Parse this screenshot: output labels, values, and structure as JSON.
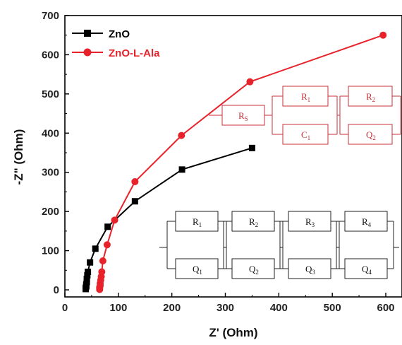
{
  "chart_data": {
    "type": "scatter",
    "title": "",
    "xlabel": "Z' (Ohm)",
    "ylabel": "-Z\" (Ohm)",
    "xlim": [
      0,
      600
    ],
    "ylim": [
      0,
      700
    ],
    "x_ticks": [
      0,
      100,
      200,
      300,
      400,
      500,
      600
    ],
    "y_ticks": [
      0,
      100,
      200,
      300,
      400,
      500,
      600,
      700
    ],
    "legend_position": "top-left",
    "series": [
      {
        "name": "ZnO",
        "color": "#000000",
        "marker": "square",
        "points": [
          [
            39,
            2
          ],
          [
            39,
            5
          ],
          [
            40,
            9
          ],
          [
            40,
            14
          ],
          [
            41,
            20
          ],
          [
            41,
            28
          ],
          [
            42,
            37
          ],
          [
            43,
            46
          ],
          [
            47,
            70
          ],
          [
            57,
            105
          ],
          [
            80,
            161
          ],
          [
            131,
            226
          ],
          [
            219,
            307
          ],
          [
            350,
            362
          ]
        ]
      },
      {
        "name": "ZnO-L-Ala",
        "color": "#e8222a",
        "marker": "circle",
        "points": [
          [
            65,
            1
          ],
          [
            65,
            4
          ],
          [
            65,
            7
          ],
          [
            66,
            11
          ],
          [
            66,
            17
          ],
          [
            67,
            25
          ],
          [
            68,
            34
          ],
          [
            69,
            46
          ],
          [
            71,
            74
          ],
          [
            79,
            115
          ],
          [
            93,
            178
          ],
          [
            131,
            276
          ],
          [
            218,
            394
          ],
          [
            346,
            531
          ],
          [
            595,
            650
          ]
        ]
      }
    ]
  },
  "circuit_top": {
    "color": "#c9303a",
    "rs_label": "R",
    "rs_sub": "S",
    "el1_label": "R",
    "el1_sub": "1",
    "el2_label": "C",
    "el2_sub": "1",
    "el3_label": "R",
    "el3_sub": "2",
    "el4_label": "Q",
    "el4_sub": "2"
  },
  "circuit_bottom": {
    "color": "#000000",
    "top_labels": [
      "R",
      "R",
      "R",
      "R"
    ],
    "top_subs": [
      "1",
      "2",
      "3",
      "4"
    ],
    "bottom_labels": [
      "Q",
      "Q",
      "Q",
      "Q"
    ],
    "bottom_subs": [
      "1",
      "2",
      "3",
      "4"
    ]
  }
}
